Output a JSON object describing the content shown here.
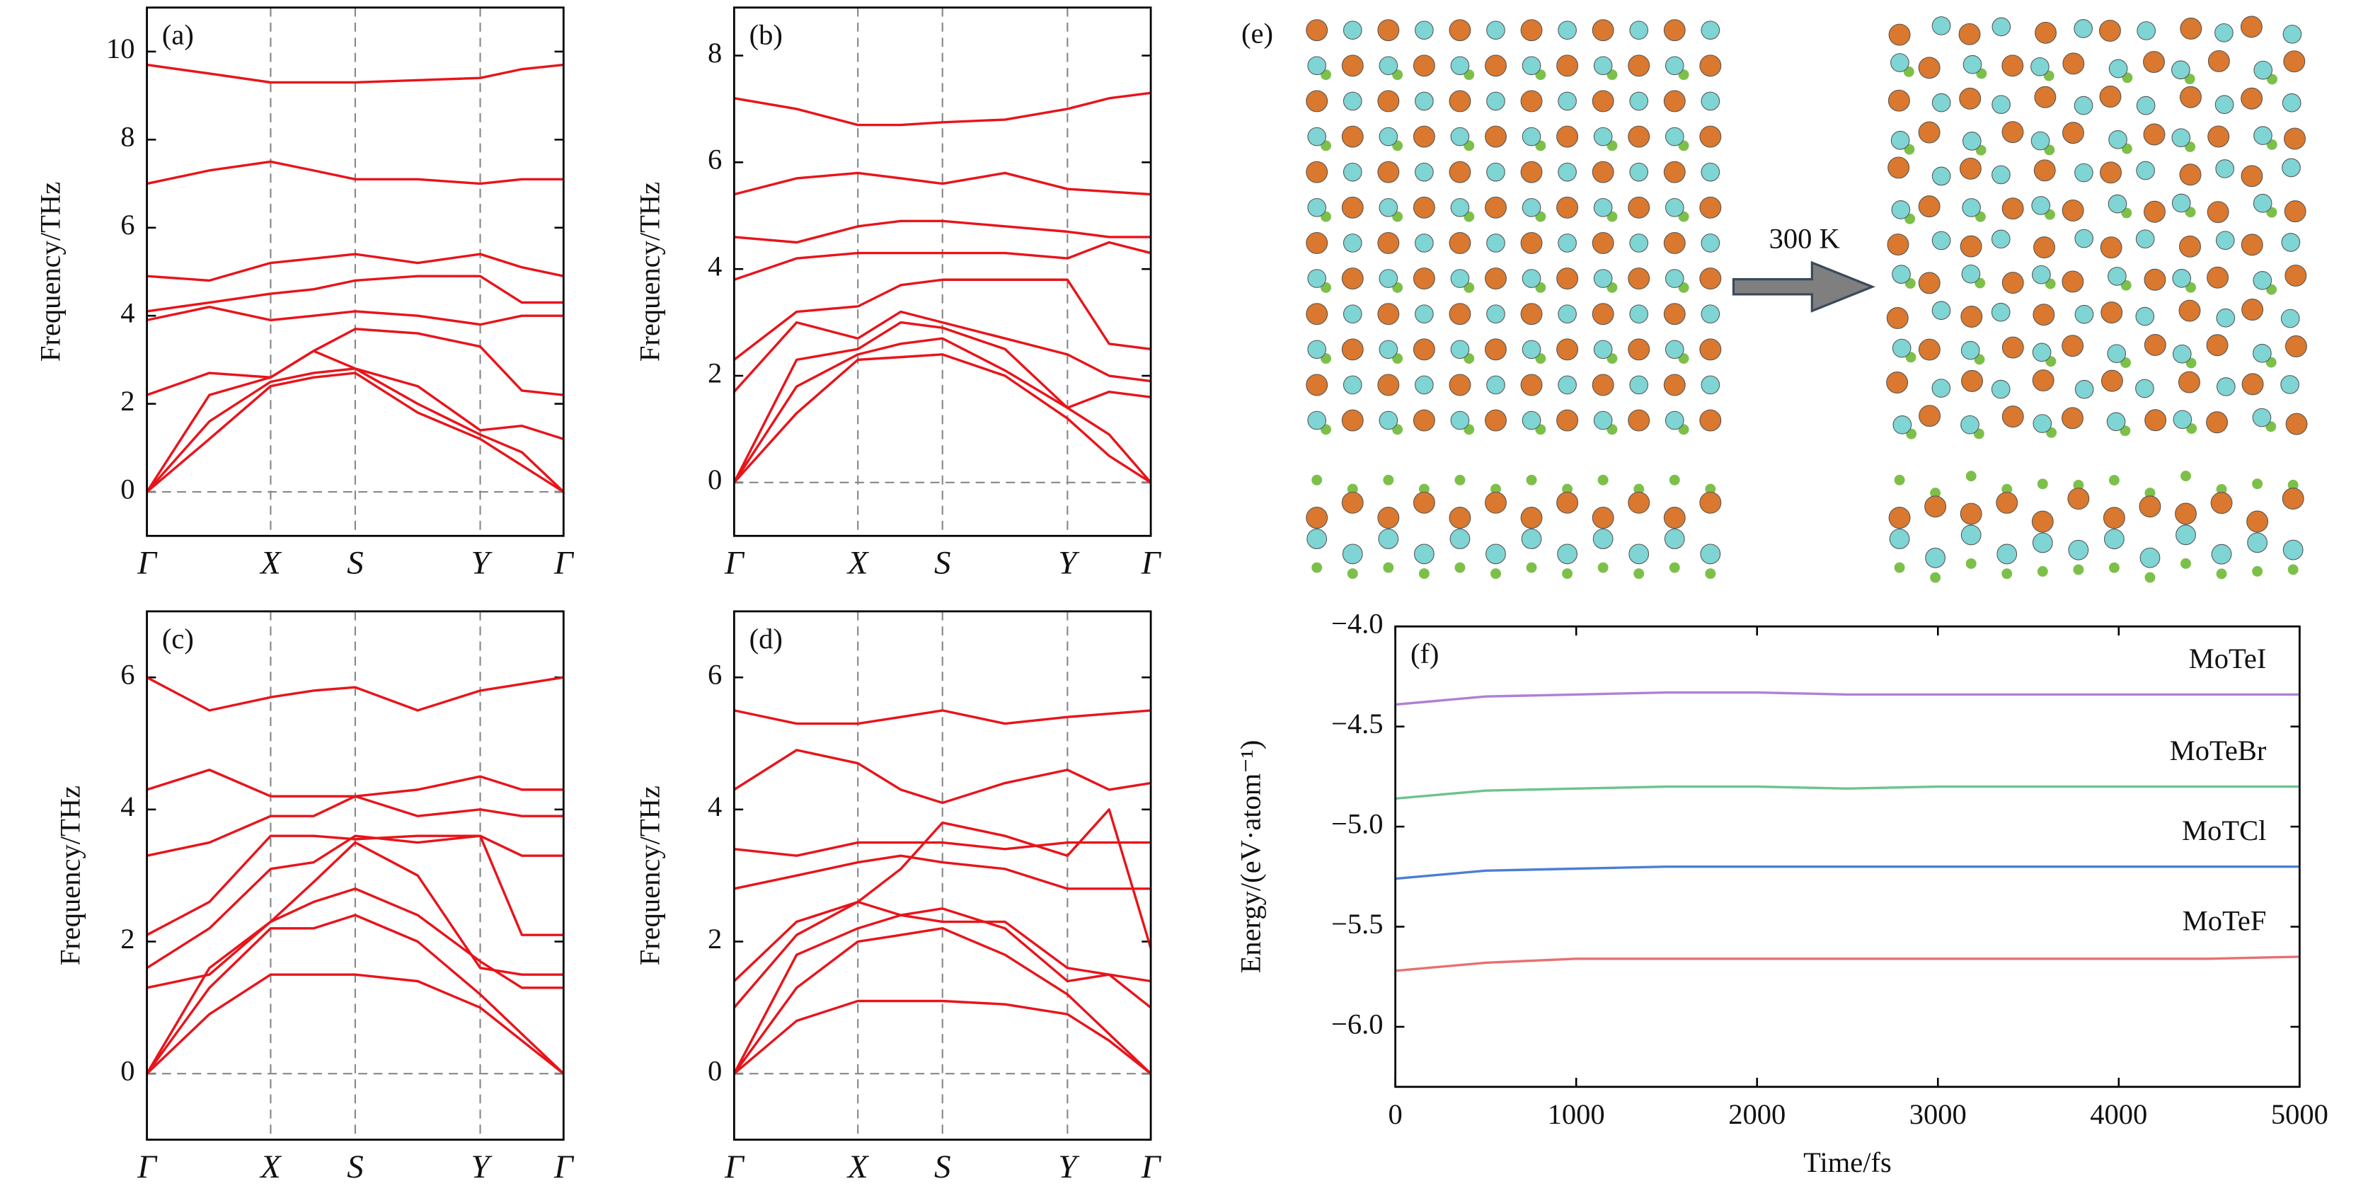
{
  "chart_data": [
    {
      "type": "line",
      "label": "(a)",
      "ylabel": "Frequency/THz",
      "color": "#e8141a",
      "zero_line": true,
      "symmetry_lines": true,
      "ylim": [
        -1,
        11
      ],
      "yticks": [
        0,
        2,
        4,
        6,
        8,
        10
      ],
      "xlim": [
        0,
        1
      ],
      "xticks": [
        {
          "value": 0,
          "label": "Γ"
        },
        {
          "value": 0.297,
          "label": "X"
        },
        {
          "value": 0.5,
          "label": "S"
        },
        {
          "value": 0.8,
          "label": "Y"
        },
        {
          "value": 1,
          "label": "Γ"
        }
      ],
      "x": [
        0,
        0.15,
        0.297,
        0.4,
        0.5,
        0.65,
        0.8,
        0.9,
        1
      ],
      "series": [
        {
          "values": [
            0,
            1.2,
            2.4,
            2.6,
            2.7,
            1.8,
            1.2,
            0.6,
            0
          ]
        },
        {
          "values": [
            0,
            1.6,
            2.5,
            2.7,
            2.8,
            2.0,
            1.3,
            0.9,
            0
          ]
        },
        {
          "values": [
            0,
            2.2,
            2.6,
            3.2,
            2.8,
            2.4,
            1.4,
            1.5,
            1.2
          ]
        },
        {
          "values": [
            2.2,
            2.7,
            2.6,
            3.2,
            3.7,
            3.6,
            3.3,
            2.3,
            2.2
          ]
        },
        {
          "values": [
            3.9,
            4.2,
            3.9,
            4.0,
            4.1,
            4.0,
            3.8,
            4.0,
            4.0
          ]
        },
        {
          "values": [
            4.1,
            4.3,
            4.5,
            4.6,
            4.8,
            4.9,
            4.9,
            4.3,
            4.3
          ]
        },
        {
          "values": [
            4.9,
            4.8,
            5.2,
            5.3,
            5.4,
            5.2,
            5.4,
            5.1,
            4.9
          ]
        },
        {
          "values": [
            7.0,
            7.3,
            7.5,
            7.3,
            7.1,
            7.1,
            7.0,
            7.1,
            7.1
          ]
        },
        {
          "values": [
            9.7,
            9.5,
            9.3,
            9.3,
            9.3,
            9.35,
            9.4,
            9.6,
            9.7
          ]
        }
      ]
    },
    {
      "type": "line",
      "label": "(b)",
      "ylabel": "Frequency/THz",
      "color": "#e8141a",
      "zero_line": true,
      "symmetry_lines": true,
      "ylim": [
        -1,
        8.9
      ],
      "yticks": [
        0,
        2,
        4,
        6,
        8
      ],
      "xlim": [
        0,
        1
      ],
      "xticks": [
        {
          "value": 0,
          "label": "Γ"
        },
        {
          "value": 0.297,
          "label": "X"
        },
        {
          "value": 0.5,
          "label": "S"
        },
        {
          "value": 0.8,
          "label": "Y"
        },
        {
          "value": 1,
          "label": "Γ"
        }
      ],
      "x": [
        0,
        0.15,
        0.297,
        0.4,
        0.5,
        0.65,
        0.8,
        0.9,
        1
      ],
      "series": [
        {
          "values": [
            0,
            1.3,
            2.3,
            2.35,
            2.4,
            2.0,
            1.2,
            0.5,
            0
          ]
        },
        {
          "values": [
            0,
            1.8,
            2.4,
            2.6,
            2.7,
            2.1,
            1.4,
            0.9,
            0
          ]
        },
        {
          "values": [
            0,
            2.3,
            2.5,
            3.0,
            2.9,
            2.5,
            1.4,
            1.7,
            1.6
          ]
        },
        {
          "values": [
            1.7,
            3.0,
            2.7,
            3.2,
            3.0,
            2.7,
            2.4,
            2.0,
            1.9
          ]
        },
        {
          "values": [
            2.3,
            3.2,
            3.3,
            3.7,
            3.8,
            3.8,
            3.8,
            2.6,
            2.5
          ]
        },
        {
          "values": [
            3.8,
            4.2,
            4.3,
            4.3,
            4.3,
            4.3,
            4.2,
            4.5,
            4.3
          ]
        },
        {
          "values": [
            4.6,
            4.5,
            4.8,
            4.9,
            4.9,
            4.8,
            4.7,
            4.6,
            4.6
          ]
        },
        {
          "values": [
            5.4,
            5.7,
            5.8,
            5.7,
            5.6,
            5.8,
            5.5,
            5.45,
            5.4
          ]
        },
        {
          "values": [
            7.2,
            7.0,
            6.7,
            6.7,
            6.75,
            6.8,
            7.0,
            7.2,
            7.3
          ]
        }
      ]
    },
    {
      "type": "line",
      "label": "(c)",
      "ylabel": "Frequency/THz",
      "color": "#e8141a",
      "zero_line": true,
      "symmetry_lines": true,
      "ylim": [
        -1,
        7
      ],
      "yticks": [
        0,
        2,
        4,
        6
      ],
      "xlim": [
        0,
        1
      ],
      "xticks": [
        {
          "value": 0,
          "label": "Γ"
        },
        {
          "value": 0.297,
          "label": "X"
        },
        {
          "value": 0.5,
          "label": "S"
        },
        {
          "value": 0.8,
          "label": "Y"
        },
        {
          "value": 1,
          "label": "Γ"
        }
      ],
      "x": [
        0,
        0.15,
        0.297,
        0.4,
        0.5,
        0.65,
        0.8,
        0.9,
        1
      ],
      "series": [
        {
          "values": [
            0,
            0.9,
            1.5,
            1.5,
            1.5,
            1.4,
            1.0,
            0.5,
            0
          ]
        },
        {
          "values": [
            0,
            1.3,
            2.2,
            2.2,
            2.4,
            2.0,
            1.2,
            0.6,
            0
          ]
        },
        {
          "values": [
            0,
            1.6,
            2.3,
            2.6,
            2.8,
            2.4,
            1.7,
            1.3,
            1.3
          ]
        },
        {
          "values": [
            1.3,
            1.5,
            2.3,
            2.9,
            3.5,
            3.0,
            1.6,
            1.5,
            1.5
          ]
        },
        {
          "values": [
            1.6,
            2.2,
            3.1,
            3.2,
            3.6,
            3.5,
            3.6,
            2.1,
            2.1
          ]
        },
        {
          "values": [
            2.1,
            2.6,
            3.6,
            3.6,
            3.55,
            3.6,
            3.6,
            3.3,
            3.3
          ]
        },
        {
          "values": [
            3.3,
            3.5,
            3.9,
            3.9,
            4.2,
            3.9,
            4.0,
            3.9,
            3.9
          ]
        },
        {
          "values": [
            4.3,
            4.6,
            4.2,
            4.2,
            4.2,
            4.3,
            4.5,
            4.3,
            4.3
          ]
        },
        {
          "values": [
            6.0,
            5.5,
            5.7,
            5.8,
            5.85,
            5.5,
            5.8,
            5.9,
            6.0
          ]
        }
      ]
    },
    {
      "type": "line",
      "label": "(d)",
      "ylabel": "Frequency/THz",
      "color": "#e8141a",
      "zero_line": true,
      "symmetry_lines": true,
      "ylim": [
        -1,
        7
      ],
      "yticks": [
        0,
        2,
        4,
        6
      ],
      "xlim": [
        0,
        1
      ],
      "xticks": [
        {
          "value": 0,
          "label": "Γ"
        },
        {
          "value": 0.297,
          "label": "X"
        },
        {
          "value": 0.5,
          "label": "S"
        },
        {
          "value": 0.8,
          "label": "Y"
        },
        {
          "value": 1,
          "label": "Γ"
        }
      ],
      "x": [
        0,
        0.15,
        0.297,
        0.4,
        0.5,
        0.65,
        0.8,
        0.9,
        1
      ],
      "series": [
        {
          "values": [
            0,
            0.8,
            1.1,
            1.1,
            1.1,
            1.05,
            0.9,
            0.5,
            0
          ]
        },
        {
          "values": [
            0,
            1.3,
            2.0,
            2.1,
            2.2,
            1.8,
            1.2,
            0.6,
            0
          ]
        },
        {
          "values": [
            0,
            1.8,
            2.2,
            2.4,
            2.5,
            2.2,
            1.4,
            1.5,
            1.0
          ]
        },
        {
          "values": [
            1.0,
            2.1,
            2.6,
            2.4,
            2.3,
            2.3,
            1.6,
            1.5,
            1.4
          ]
        },
        {
          "values": [
            1.4,
            2.3,
            2.6,
            3.1,
            3.8,
            3.6,
            3.3,
            4.0,
            1.9
          ]
        },
        {
          "values": [
            2.8,
            3.0,
            3.2,
            3.3,
            3.2,
            3.1,
            2.8,
            2.8,
            2.8
          ]
        },
        {
          "values": [
            3.4,
            3.3,
            3.5,
            3.5,
            3.5,
            3.4,
            3.5,
            3.5,
            3.5
          ]
        },
        {
          "values": [
            4.3,
            4.9,
            4.7,
            4.3,
            4.1,
            4.4,
            4.6,
            4.3,
            4.4
          ]
        },
        {
          "values": [
            5.5,
            5.3,
            5.3,
            5.4,
            5.5,
            5.3,
            5.4,
            5.45,
            5.5
          ]
        }
      ]
    },
    {
      "type": "line",
      "label": "(f)",
      "ylabel": "Energy/(eV·atom⁻¹)",
      "xlabel": "Time/fs",
      "ylim": [
        -6.3,
        -4.0
      ],
      "yticks": [
        {
          "value": -4.0,
          "label": "−4.0"
        },
        {
          "value": -4.5,
          "label": "−4.5"
        },
        {
          "value": -5.0,
          "label": "−5.0"
        },
        {
          "value": -5.5,
          "label": "−5.5"
        },
        {
          "value": -6.0,
          "label": "−6.0"
        }
      ],
      "xlim": [
        0,
        5000
      ],
      "xticks": [
        0,
        1000,
        2000,
        3000,
        4000,
        5000
      ],
      "x": [
        0,
        500,
        1000,
        1500,
        2000,
        2500,
        3000,
        3500,
        4000,
        4500,
        5000
      ],
      "series": [
        {
          "name": "MoTeI",
          "color": "#b07fd6",
          "values": [
            -4.39,
            -4.35,
            -4.34,
            -4.33,
            -4.33,
            -4.34,
            -4.34,
            -4.34,
            -4.34,
            -4.34,
            -4.34
          ]
        },
        {
          "name": "MoTeBr",
          "color": "#6cc48b",
          "values": [
            -4.86,
            -4.82,
            -4.81,
            -4.8,
            -4.8,
            -4.81,
            -4.8,
            -4.8,
            -4.8,
            -4.8,
            -4.8
          ]
        },
        {
          "name": "MoTCl",
          "color": "#4a7fd4",
          "values": [
            -5.26,
            -5.22,
            -5.21,
            -5.2,
            -5.2,
            -5.2,
            -5.2,
            -5.2,
            -5.2,
            -5.2,
            -5.2
          ]
        },
        {
          "name": "MoTeF",
          "color": "#e87070",
          "values": [
            -5.72,
            -5.68,
            -5.66,
            -5.66,
            -5.66,
            -5.66,
            -5.66,
            -5.66,
            -5.66,
            -5.66,
            -5.65
          ]
        }
      ]
    }
  ],
  "structure": {
    "label": "(e)",
    "arrow_label": "300 K"
  }
}
